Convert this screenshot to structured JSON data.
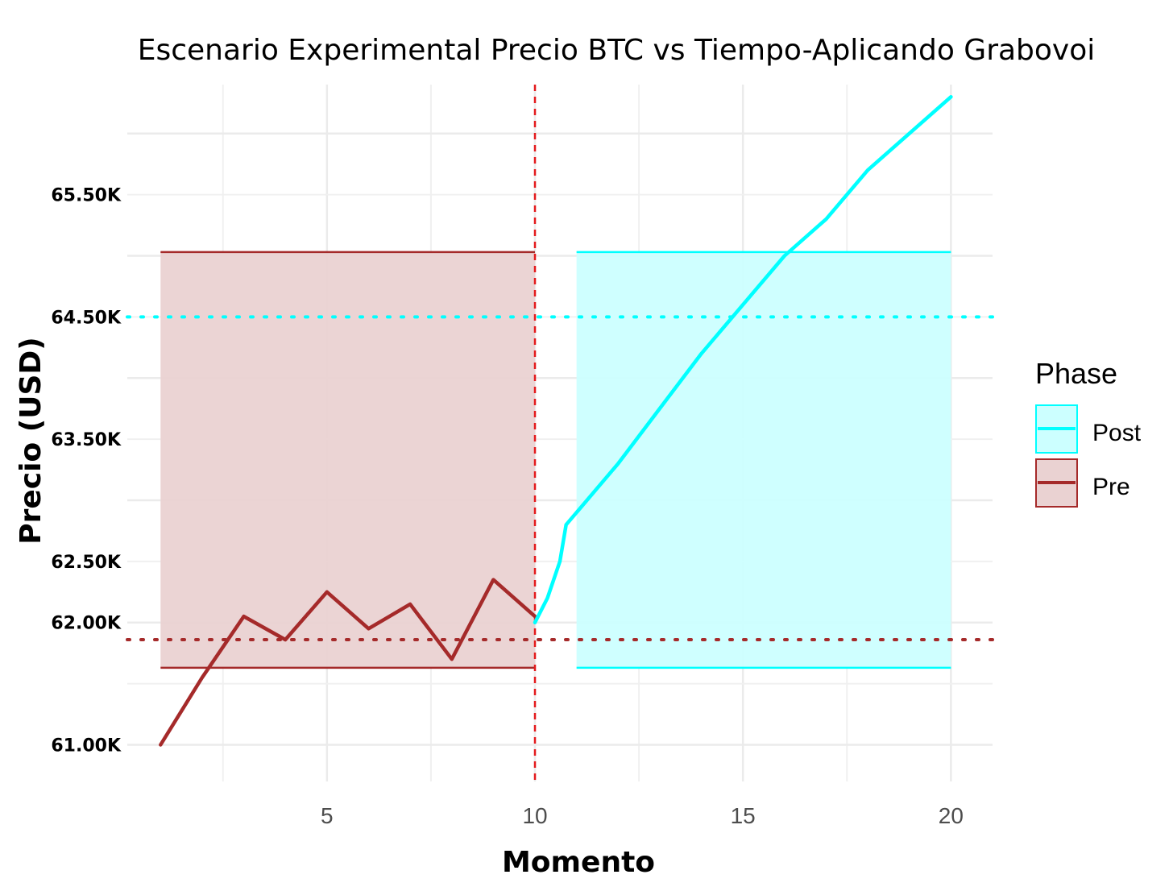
{
  "chart_data": {
    "type": "line",
    "title": "Escenario Experimental Precio BTC vs Tiempo-Aplicando Grabovoi",
    "xlabel": "Momento",
    "ylabel": "Precio (USD)",
    "xlim": [
      0.2,
      21.0
    ],
    "ylim": [
      60700,
      66400
    ],
    "x_ticks": [
      5,
      10,
      15,
      20
    ],
    "x_tick_labels": [
      "5",
      "10",
      "15",
      "20"
    ],
    "y_ticks": [
      61000,
      62000,
      62500,
      63500,
      64500,
      65500
    ],
    "y_tick_labels": [
      "61.00K",
      "62.00K",
      "62.50K",
      "63.50K",
      "64.50K",
      "65.50K"
    ],
    "grid": true,
    "legend_placement": "right",
    "legend_title": "Phase",
    "series": [
      {
        "name": "Post",
        "color": "#00ffff",
        "fill": "#ccffff",
        "x": [
          10,
          10.3,
          10.6,
          10.75,
          11,
          12,
          13,
          14,
          15,
          16,
          17,
          18,
          19,
          20
        ],
        "values": [
          62000,
          62200,
          62500,
          62800,
          62900,
          63300,
          63750,
          64200,
          64600,
          65000,
          65300,
          65700,
          66000,
          66300
        ],
        "band_x": [
          11,
          20
        ],
        "band_y": [
          61630,
          65030
        ],
        "reference_y": 64500
      },
      {
        "name": "Pre",
        "color": "#a52a2a",
        "fill": "#ead2d2",
        "x": [
          1,
          2,
          3,
          4,
          5,
          6,
          7,
          8,
          9,
          10
        ],
        "values": [
          61000,
          61550,
          62050,
          61860,
          62250,
          61950,
          62150,
          61700,
          62350,
          62050
        ],
        "band_x": [
          1,
          10
        ],
        "band_y": [
          61630,
          65030
        ],
        "reference_y": 61860
      }
    ],
    "intervention_x": 10,
    "intervention_color": "#e41a1c"
  }
}
